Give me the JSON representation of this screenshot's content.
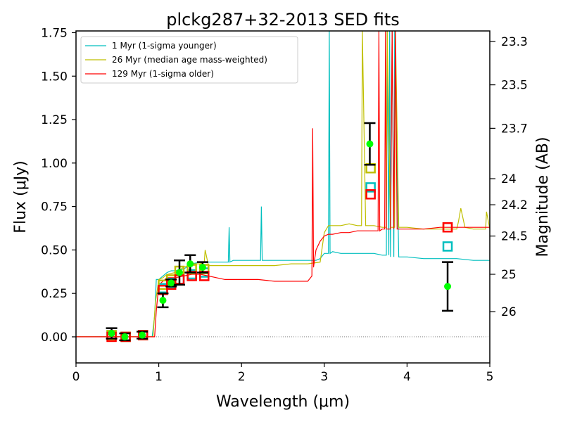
{
  "chart_data": {
    "type": "line",
    "title": "plckg287+32-2013 SED fits",
    "xlabel": "Wavelength (μm)",
    "ylabel": "Flux (μJy)",
    "y2label": "Magnitude (AB)",
    "xlim": [
      0,
      5
    ],
    "ylim": [
      -0.15,
      1.76
    ],
    "x_ticks": [
      0,
      1,
      2,
      3,
      4,
      5
    ],
    "y_ticks": [
      0.0,
      0.25,
      0.5,
      0.75,
      1.0,
      1.25,
      1.5,
      1.75
    ],
    "y_tick_labels": [
      "0.00",
      "0.25",
      "0.50",
      "0.75",
      "1.00",
      "1.25",
      "1.50",
      "1.75"
    ],
    "mag_ticks": [
      {
        "label": "23.3",
        "flux": 1.7
      },
      {
        "label": "23.5",
        "flux": 1.45
      },
      {
        "label": "23.7",
        "flux": 1.2
      },
      {
        "label": "24",
        "flux": 0.91
      },
      {
        "label": "24.2",
        "flux": 0.76
      },
      {
        "label": "24.5",
        "flux": 0.58
      },
      {
        "label": "25",
        "flux": 0.36
      },
      {
        "label": "26",
        "flux": 0.145
      }
    ],
    "grid": false,
    "legend_position": "top-left",
    "zero_line": true,
    "series": [
      {
        "name": " 1 Myr (1-sigma younger)",
        "color": "#00bfbf",
        "x": [
          0,
          0.92,
          0.95,
          0.97,
          1.0,
          1.05,
          1.1,
          1.15,
          1.2,
          1.3,
          1.4,
          1.5,
          1.6,
          1.7,
          1.8,
          1.84,
          1.85,
          1.86,
          1.9,
          2.0,
          2.1,
          2.2,
          2.23,
          2.24,
          2.25,
          2.3,
          2.5,
          2.7,
          2.9,
          2.95,
          3.0,
          3.05,
          3.06,
          3.07,
          3.1,
          3.2,
          3.3,
          3.4,
          3.5,
          3.6,
          3.7,
          3.75,
          3.76,
          3.78,
          3.79,
          3.8,
          3.82,
          3.84,
          3.85,
          3.9,
          4.0,
          4.2,
          4.4,
          4.6,
          4.8,
          5.0
        ],
        "values": [
          0.0,
          0.0,
          0.12,
          0.33,
          0.33,
          0.35,
          0.37,
          0.38,
          0.38,
          0.39,
          0.42,
          0.43,
          0.43,
          0.43,
          0.43,
          0.43,
          0.63,
          0.43,
          0.44,
          0.44,
          0.44,
          0.44,
          0.44,
          0.75,
          0.44,
          0.44,
          0.44,
          0.44,
          0.44,
          0.45,
          0.48,
          0.48,
          1.76,
          0.48,
          0.49,
          0.48,
          0.48,
          0.48,
          0.48,
          0.48,
          0.47,
          0.47,
          1.76,
          0.47,
          1.76,
          0.46,
          1.76,
          0.46,
          1.76,
          0.46,
          0.46,
          0.45,
          0.45,
          0.45,
          0.44,
          0.44
        ]
      },
      {
        "name": " 26 Myr (median age mass-weighted)",
        "color": "#bfbf00",
        "x": [
          0,
          0.93,
          0.96,
          1.0,
          1.05,
          1.1,
          1.2,
          1.3,
          1.4,
          1.5,
          1.55,
          1.56,
          1.6,
          1.7,
          1.8,
          1.9,
          2.0,
          2.2,
          2.4,
          2.6,
          2.8,
          2.95,
          3.0,
          3.05,
          3.1,
          3.2,
          3.3,
          3.4,
          3.45,
          3.46,
          3.5,
          3.6,
          3.7,
          3.75,
          3.76,
          3.8,
          3.85,
          3.86,
          3.9,
          4.0,
          4.2,
          4.4,
          4.6,
          4.6,
          4.62,
          4.65,
          4.7,
          4.8,
          4.95,
          4.96,
          5.0
        ],
        "values": [
          0.0,
          0.0,
          0.2,
          0.33,
          0.34,
          0.36,
          0.37,
          0.4,
          0.42,
          0.42,
          0.43,
          0.5,
          0.41,
          0.41,
          0.41,
          0.41,
          0.41,
          0.41,
          0.41,
          0.42,
          0.42,
          0.43,
          0.6,
          0.64,
          0.64,
          0.64,
          0.65,
          0.64,
          0.64,
          1.76,
          0.64,
          0.64,
          0.63,
          0.63,
          1.76,
          0.63,
          0.63,
          1.76,
          0.63,
          0.63,
          0.62,
          0.62,
          0.62,
          0.62,
          0.66,
          0.74,
          0.63,
          0.62,
          0.62,
          0.72,
          0.62
        ]
      },
      {
        "name": "129 Myr (1-sigma older)",
        "color": "#ff0000",
        "x": [
          0,
          0.95,
          0.97,
          1.0,
          1.05,
          1.1,
          1.2,
          1.3,
          1.4,
          1.5,
          1.6,
          1.7,
          1.8,
          1.9,
          2.0,
          2.2,
          2.4,
          2.6,
          2.8,
          2.85,
          2.86,
          2.87,
          2.9,
          2.95,
          3.0,
          3.05,
          3.1,
          3.2,
          3.3,
          3.4,
          3.5,
          3.6,
          3.65,
          3.66,
          3.67,
          3.7,
          3.73,
          3.74,
          3.75,
          3.8,
          3.82,
          3.84,
          3.86,
          3.88,
          3.9,
          4.0,
          4.2,
          4.4,
          4.6,
          4.8,
          5.0
        ],
        "values": [
          0.0,
          0.0,
          0.15,
          0.3,
          0.32,
          0.34,
          0.34,
          0.35,
          0.36,
          0.36,
          0.35,
          0.34,
          0.33,
          0.33,
          0.33,
          0.33,
          0.32,
          0.32,
          0.32,
          0.35,
          1.2,
          0.4,
          0.5,
          0.55,
          0.58,
          0.59,
          0.59,
          0.6,
          0.6,
          0.61,
          0.61,
          0.61,
          0.61,
          1.76,
          0.61,
          0.62,
          0.62,
          1.76,
          0.62,
          0.62,
          1.76,
          0.62,
          1.76,
          0.62,
          0.62,
          0.62,
          0.62,
          0.63,
          0.63,
          0.63,
          0.63
        ]
      }
    ],
    "model_photometry": [
      {
        "series": 0,
        "x": [
          0.43,
          0.6,
          0.81,
          1.05,
          1.15,
          1.25,
          1.4,
          1.55,
          3.56,
          4.49
        ],
        "values": [
          0.01,
          0.0,
          0.01,
          0.28,
          0.31,
          0.33,
          0.36,
          0.37,
          0.86,
          0.52
        ]
      },
      {
        "series": 1,
        "x": [
          0.43,
          0.6,
          0.81,
          1.05,
          1.15,
          1.25,
          1.4,
          1.55,
          3.56,
          4.49
        ],
        "values": [
          0.01,
          0.0,
          0.01,
          0.3,
          0.33,
          0.38,
          0.39,
          0.39,
          0.97,
          0.63
        ]
      },
      {
        "series": 2,
        "x": [
          0.43,
          0.6,
          0.81,
          1.05,
          1.15,
          1.25,
          1.4,
          1.55,
          3.56,
          4.49
        ],
        "values": [
          0.0,
          0.0,
          0.01,
          0.27,
          0.3,
          0.33,
          0.35,
          0.35,
          0.82,
          0.63
        ]
      }
    ],
    "observed": {
      "color": "#00ff00",
      "x": [
        0.43,
        0.59,
        0.8,
        1.05,
        1.15,
        1.25,
        1.38,
        1.53,
        3.55,
        4.49
      ],
      "values": [
        0.02,
        0.0,
        0.01,
        0.21,
        0.31,
        0.37,
        0.42,
        0.4,
        1.11,
        0.29
      ],
      "errors": [
        0.03,
        0.02,
        0.02,
        0.04,
        0.02,
        0.07,
        0.05,
        0.03,
        0.12,
        0.14
      ]
    }
  }
}
